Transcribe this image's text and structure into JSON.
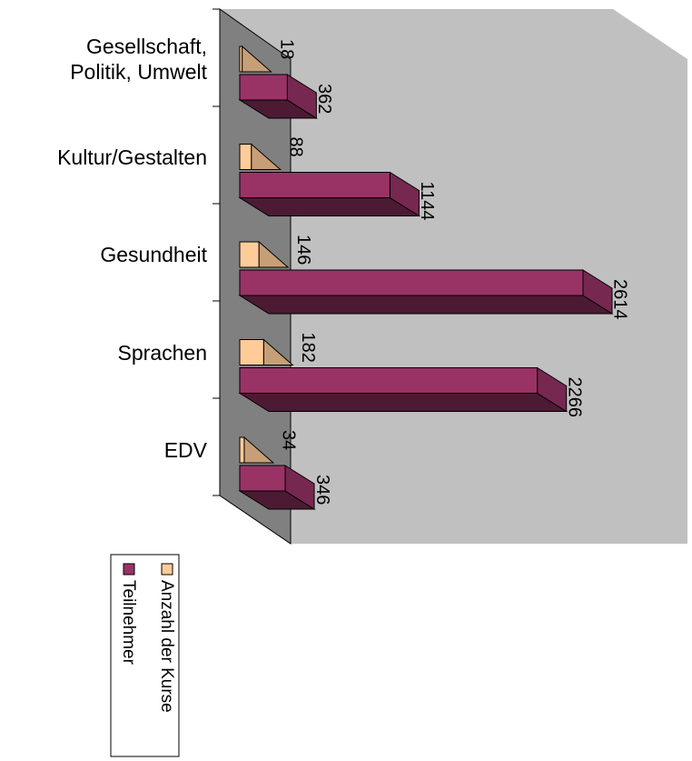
{
  "chart_data": {
    "type": "bar3d_horizontal",
    "categories": [
      "Gesellschaft,\nPolitik, Umwelt",
      "Kultur/Gestalten",
      "Gesundheit",
      "Sprachen",
      "EDV"
    ],
    "series": [
      {
        "name": "Anzahl der Kurse",
        "color": "#ffcc99",
        "values": [
          18,
          88,
          146,
          182,
          34
        ]
      },
      {
        "name": "Teilnehmer",
        "color": "#993366",
        "values": [
          362,
          1144,
          2614,
          2266,
          346
        ]
      }
    ],
    "xlim": [
      0,
      3000
    ],
    "legend": "bottom-left"
  }
}
